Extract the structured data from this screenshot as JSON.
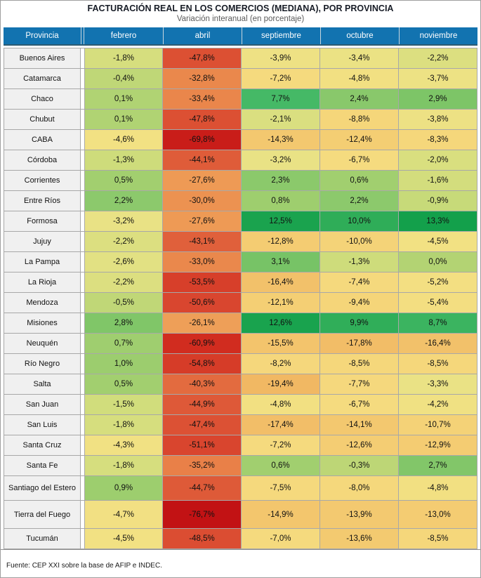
{
  "title": "FACTURACIÓN REAL EN LOS COMERCIOS (MEDIANA), POR PROVINCIA",
  "subtitle": "Variación interanual (en porcentaje)",
  "source": "Fuente: CEP XXI sobre la base de AFIP e INDEC.",
  "colors": {
    "header_bg": "#1273b0",
    "header_text": "#ffffff",
    "header_separator": "#c9d6dd",
    "header_underline": "#2c5b73",
    "province_bg": "#f0f0f0",
    "grid": "#a8a8a8",
    "title": "#171c26",
    "subtitle": "#5b5b5b",
    "cell_text": "#111111",
    "source_text": "#1a1a1a",
    "figure_border": "#9e9e9e"
  },
  "chart_data": {
    "type": "heatmap",
    "title": "FACTURACIÓN REAL EN LOS COMERCIOS (MEDIANA), POR PROVINCIA",
    "subtitle": "Variación interanual (en porcentaje)",
    "value_unit": "percent",
    "number_format": "one decimal, comma as decimal separator, trailing %",
    "columns": [
      "Provincia",
      "febrero",
      "abril",
      "septiembre",
      "octubre",
      "noviembre"
    ],
    "rows": [
      {
        "provincia": "Buenos Aires",
        "values": [
          -1.8,
          -47.8,
          -3.9,
          -3.4,
          -2.2
        ]
      },
      {
        "provincia": "Catamarca",
        "values": [
          -0.4,
          -32.8,
          -7.2,
          -4.8,
          -3.7
        ]
      },
      {
        "provincia": "Chaco",
        "values": [
          0.1,
          -33.4,
          7.7,
          2.4,
          2.9
        ]
      },
      {
        "provincia": "Chubut",
        "values": [
          0.1,
          -47.8,
          -2.1,
          -8.8,
          -3.8
        ]
      },
      {
        "provincia": "CABA",
        "values": [
          -4.6,
          -69.8,
          -14.3,
          -12.4,
          -8.3
        ]
      },
      {
        "provincia": "Córdoba",
        "values": [
          -1.3,
          -44.1,
          -3.2,
          -6.7,
          -2.0
        ]
      },
      {
        "provincia": "Corrientes",
        "values": [
          0.5,
          -27.6,
          2.3,
          0.6,
          -1.6
        ]
      },
      {
        "provincia": "Entre Ríos",
        "values": [
          2.2,
          -30.0,
          0.8,
          2.2,
          -0.9
        ]
      },
      {
        "provincia": "Formosa",
        "values": [
          -3.2,
          -27.6,
          12.5,
          10.0,
          13.3
        ]
      },
      {
        "provincia": "Jujuy",
        "values": [
          -2.2,
          -43.1,
          -12.8,
          -10.0,
          -4.5
        ]
      },
      {
        "provincia": "La Pampa",
        "values": [
          -2.6,
          -33.0,
          3.1,
          -1.3,
          0.0
        ]
      },
      {
        "provincia": "La Rioja",
        "values": [
          -2.2,
          -53.5,
          -16.4,
          -7.4,
          -5.2
        ]
      },
      {
        "provincia": "Mendoza",
        "values": [
          -0.5,
          -50.6,
          -12.1,
          -9.4,
          -5.4
        ]
      },
      {
        "provincia": "Misiones",
        "values": [
          2.8,
          -26.1,
          12.6,
          9.9,
          8.7
        ]
      },
      {
        "provincia": "Neuquén",
        "values": [
          0.7,
          -60.9,
          -15.5,
          -17.8,
          -16.4
        ]
      },
      {
        "provincia": "Río Negro",
        "values": [
          1.0,
          -54.8,
          -8.2,
          -8.5,
          -8.5
        ]
      },
      {
        "provincia": "Salta",
        "values": [
          0.5,
          -40.3,
          -19.4,
          -7.7,
          -3.3
        ]
      },
      {
        "provincia": "San Juan",
        "values": [
          -1.5,
          -44.9,
          -4.8,
          -6.7,
          -4.2
        ]
      },
      {
        "provincia": "San Luis",
        "values": [
          -1.8,
          -47.4,
          -17.4,
          -14.1,
          -10.7
        ]
      },
      {
        "provincia": "Santa Cruz",
        "values": [
          -4.3,
          -51.1,
          -7.2,
          -12.6,
          -12.9
        ]
      },
      {
        "provincia": "Santa Fe",
        "values": [
          -1.8,
          -35.2,
          0.6,
          -0.3,
          2.7
        ]
      },
      {
        "provincia": "Santiago del Estero",
        "values": [
          0.9,
          -44.7,
          -7.5,
          -8.0,
          -4.8
        ]
      },
      {
        "provincia": "Tierra del Fuego",
        "values": [
          -4.7,
          -76.7,
          -14.9,
          -13.9,
          -13.0
        ]
      },
      {
        "provincia": "Tucumán",
        "values": [
          -4.5,
          -48.5,
          -7.0,
          -13.6,
          -8.5
        ]
      }
    ],
    "color_scale": {
      "description": "diverging red-yellow-green applied per cell value (piecewise linear RGB interpolation)",
      "anchors": [
        [
          -77,
          "#c21114"
        ],
        [
          -61,
          "#d12c1f"
        ],
        [
          -51,
          "#d9452e"
        ],
        [
          -44,
          "#df5c39"
        ],
        [
          -35,
          "#e98148"
        ],
        [
          -27,
          "#ee9c56"
        ],
        [
          -19,
          "#f1b964"
        ],
        [
          -12,
          "#f4cf74"
        ],
        [
          -7,
          "#f5da7e"
        ],
        [
          -4.5,
          "#f2e183"
        ],
        [
          -3,
          "#e8e285"
        ],
        [
          -1.5,
          "#d1dd7c"
        ],
        [
          -0.3,
          "#bdd676"
        ],
        [
          0.5,
          "#a2cf6f"
        ],
        [
          2.5,
          "#88c86b"
        ],
        [
          3.5,
          "#6cc062"
        ],
        [
          7.7,
          "#45b966"
        ],
        [
          10,
          "#2fad58"
        ],
        [
          13.3,
          "#13a04b"
        ]
      ]
    },
    "legend": "none",
    "grid": "thin gray cell borders"
  }
}
